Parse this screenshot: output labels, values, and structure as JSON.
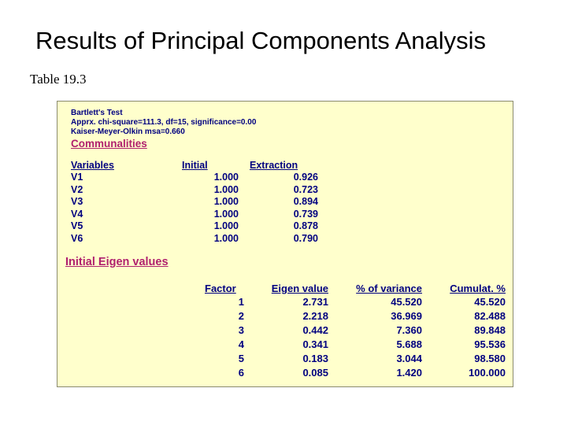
{
  "slide": {
    "title": "Results of Principal Components Analysis",
    "caption": "Table 19.3"
  },
  "panel": {
    "bartlett": [
      "Bartlett's Test",
      "Apprx. chi-square=111.3, df=15, significance=0.00",
      "Kaiser-Meyer-Olkin msa=0.660"
    ],
    "communalities": {
      "heading": "Communalities",
      "columns": [
        "Variables",
        "Initial",
        "Extraction"
      ],
      "rows": [
        [
          "V1",
          "1.000",
          "0.926"
        ],
        [
          "V2",
          "1.000",
          "0.723"
        ],
        [
          "V3",
          "1.000",
          "0.894"
        ],
        [
          "V4",
          "1.000",
          "0.739"
        ],
        [
          "V5",
          "1.000",
          "0.878"
        ],
        [
          "V6",
          "1.000",
          "0.790"
        ]
      ]
    },
    "eigen": {
      "heading": "Initial Eigen values",
      "columns": [
        "Factor",
        "Eigen value",
        "% of variance",
        "Cumulat. %"
      ],
      "rows": [
        [
          "1",
          "2.731",
          "45.520",
          "45.520"
        ],
        [
          "2",
          "2.218",
          "36.969",
          "82.488"
        ],
        [
          "3",
          "0.442",
          "7.360",
          "89.848"
        ],
        [
          "4",
          "0.341",
          "5.688",
          "95.536"
        ],
        [
          "5",
          "0.183",
          "3.044",
          "98.580"
        ],
        [
          "6",
          "0.085",
          "1.420",
          "100.000"
        ]
      ]
    }
  },
  "colors": {
    "panel_background": "#ffffcc",
    "table_text": "#000080",
    "heading_text": "#b0206e"
  }
}
